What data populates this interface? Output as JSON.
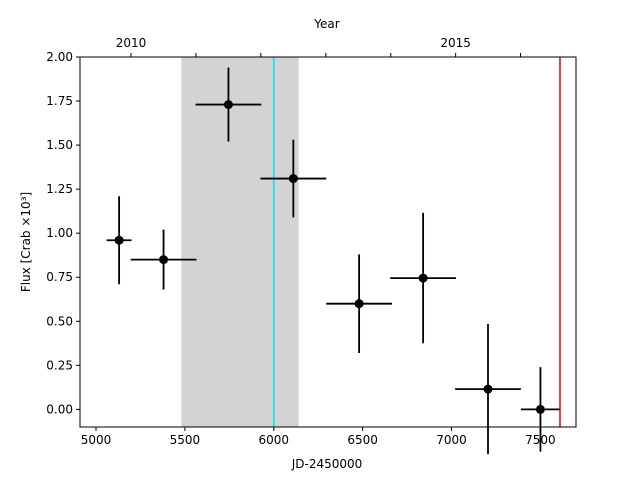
{
  "chart_data": {
    "type": "scatter",
    "title": "",
    "xlabel": "JD-2450000",
    "ylabel": "Flux [Crab ×10³]",
    "top_xlabel": "Year",
    "xlim": [
      4910,
      7700
    ],
    "ylim": [
      -0.1,
      2.0
    ],
    "x_ticks": [
      5000,
      5500,
      6000,
      6500,
      7000,
      7500
    ],
    "y_ticks": [
      0.0,
      0.25,
      0.5,
      0.75,
      1.0,
      1.25,
      1.5,
      1.75,
      2.0
    ],
    "y_tick_labels": [
      "0.00",
      "0.25",
      "0.50",
      "0.75",
      "1.00",
      "1.25",
      "1.50",
      "1.75",
      "2.00"
    ],
    "top_ticks": [
      {
        "label": "2010",
        "jd": 5197
      },
      {
        "label": "2015",
        "jd": 7023
      }
    ],
    "top_minor_ticks_jd": [
      5562,
      5927,
      6293,
      6658,
      7388
    ],
    "shaded_region": {
      "x0": 5480,
      "x1": 6140,
      "color": "#d3d3d3"
    },
    "vlines": [
      {
        "x": 6000,
        "color": "#00e5ee"
      },
      {
        "x": 7610,
        "color": "#e8000b"
      }
    ],
    "grid": false,
    "marker_color": "#000000",
    "points": [
      {
        "x": 5130,
        "y": 0.96,
        "xerr": 70,
        "yerr": 0.25
      },
      {
        "x": 5380,
        "y": 0.85,
        "xerr": 185,
        "yerr": 0.17
      },
      {
        "x": 5745,
        "y": 1.73,
        "xerr": 185,
        "yerr": 0.21
      },
      {
        "x": 6110,
        "y": 1.31,
        "xerr": 185,
        "yerr": 0.22
      },
      {
        "x": 6480,
        "y": 0.6,
        "xerr": 185,
        "yerr": 0.28
      },
      {
        "x": 6840,
        "y": 0.745,
        "xerr": 185,
        "yerr": 0.37
      },
      {
        "x": 7205,
        "y": 0.115,
        "xerr": 185,
        "yerr": 0.37
      },
      {
        "x": 7500,
        "y": 0.0,
        "xerr": 110,
        "yerr": 0.24
      }
    ]
  }
}
